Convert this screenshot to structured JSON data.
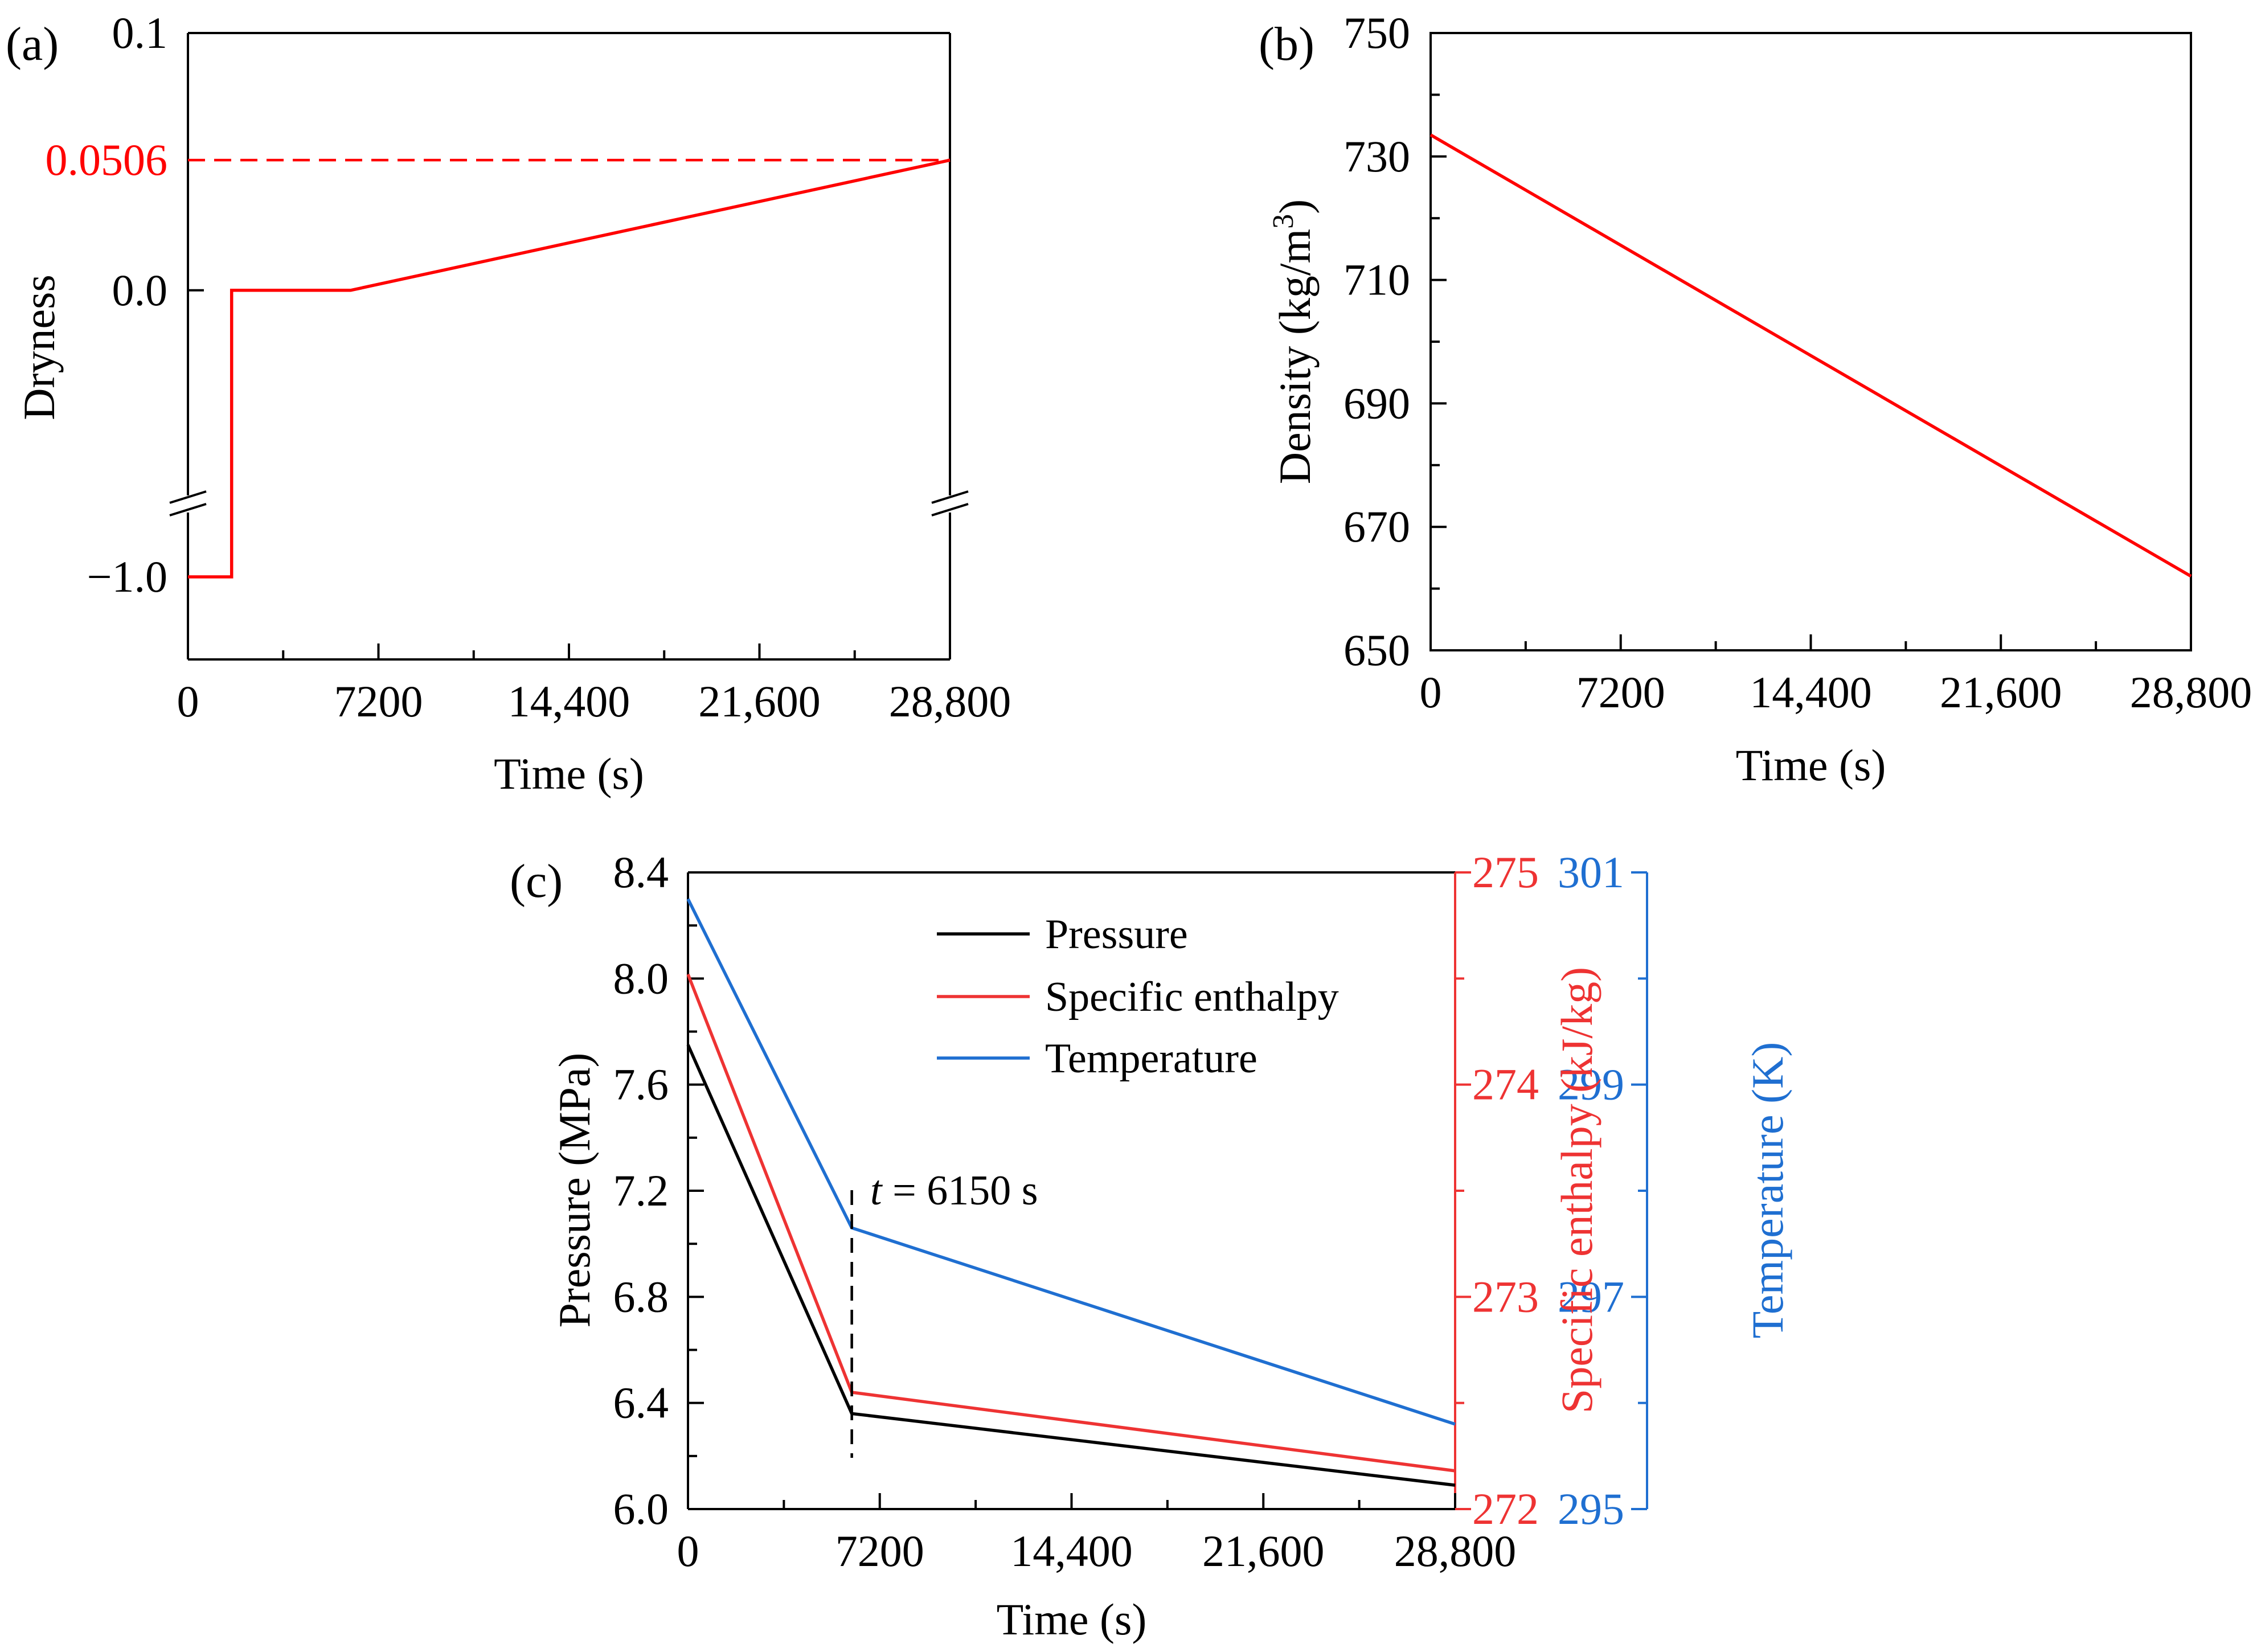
{
  "colors": {
    "axis": "#000000",
    "red": "#ff0000",
    "enthalpy_red": "#ee3333",
    "blue": "#1f6fd1",
    "black": "#000000"
  },
  "chart_data": [
    {
      "panel_label": "(a)",
      "type": "line",
      "xlabel": "Time (s)",
      "ylabel": "Dryness",
      "xlim": [
        0,
        28800
      ],
      "x_ticks": [
        0,
        7200,
        14400,
        21600,
        28800
      ],
      "x_tick_labels": [
        "0",
        "7200",
        "14,400",
        "21,600",
        "28,800"
      ],
      "y_axis_break": true,
      "y_segments": [
        {
          "range": [
            -1.4,
            -0.6
          ],
          "ticks": [
            -1.0
          ],
          "tick_labels": [
            "−1.0"
          ]
        },
        {
          "range": [
            -0.07,
            0.1
          ],
          "ticks": [
            0.0,
            0.1
          ],
          "tick_labels": [
            "0.0",
            "0.1"
          ]
        }
      ],
      "reference_line": {
        "y": 0.0506,
        "label": "0.0506",
        "style": "dashed",
        "color": "#ff0000"
      },
      "series": [
        {
          "name": "Dryness",
          "color": "#ff0000",
          "points": [
            [
              0,
              -1.0
            ],
            [
              1650,
              -1.0
            ],
            [
              1650,
              0.0
            ],
            [
              6150,
              0.0
            ],
            [
              28800,
              0.0506
            ]
          ]
        }
      ]
    },
    {
      "panel_label": "(b)",
      "type": "line",
      "xlabel": "Time (s)",
      "ylabel_parts": [
        "Density (kg/m",
        "3",
        ")"
      ],
      "xlim": [
        0,
        28800
      ],
      "ylim": [
        650,
        750
      ],
      "x_ticks": [
        0,
        7200,
        14400,
        21600,
        28800
      ],
      "x_tick_labels": [
        "0",
        "7200",
        "14,400",
        "21,600",
        "28,800"
      ],
      "y_ticks": [
        650,
        670,
        690,
        710,
        730,
        750
      ],
      "y_tick_labels": [
        "650",
        "670",
        "690",
        "710",
        "730",
        "750"
      ],
      "series": [
        {
          "name": "Density",
          "color": "#ff0000",
          "points": [
            [
              0,
              733.5
            ],
            [
              28800,
              662
            ]
          ]
        }
      ]
    },
    {
      "panel_label": "(c)",
      "type": "line",
      "xlabel": "Time (s)",
      "xlim": [
        0,
        28800
      ],
      "x_ticks": [
        0,
        7200,
        14400,
        21600,
        28800
      ],
      "x_tick_labels": [
        "0",
        "7200",
        "14,400",
        "21,600",
        "28,800"
      ],
      "axes": {
        "left": {
          "label": "Pressure (MPa)",
          "range": [
            6.0,
            8.4
          ],
          "ticks": [
            6.0,
            6.4,
            6.8,
            7.2,
            7.6,
            8.0,
            8.4
          ],
          "tick_labels": [
            "6.0",
            "6.4",
            "6.8",
            "7.2",
            "7.6",
            "8.0",
            "8.4"
          ],
          "color": "#000000"
        },
        "right1": {
          "label": "Specific enthalpy (kJ/kg)",
          "range": [
            272,
            275
          ],
          "ticks": [
            272,
            273,
            274,
            275
          ],
          "tick_labels": [
            "272",
            "273",
            "274",
            "275"
          ],
          "color": "#ee3333"
        },
        "right2": {
          "label": "Temperature (K)",
          "range": [
            295,
            301
          ],
          "ticks": [
            295,
            297,
            299,
            301
          ],
          "tick_labels": [
            "295",
            "297",
            "299",
            "301"
          ],
          "color": "#1f6fd1"
        }
      },
      "annotation": {
        "italic": "t",
        "text": " = 6150 s",
        "x": 6150
      },
      "legend": [
        "Pressure",
        "Specific enthalpy",
        "Temperature"
      ],
      "series": [
        {
          "name": "Pressure",
          "axis": "left",
          "color": "#000000",
          "points": [
            [
              0,
              7.75
            ],
            [
              6150,
              6.36
            ],
            [
              28800,
              6.09
            ]
          ]
        },
        {
          "name": "Specific enthalpy",
          "axis": "right1",
          "color": "#ee3333",
          "points": [
            [
              0,
              274.52
            ],
            [
              6150,
              272.55
            ],
            [
              28800,
              272.18
            ]
          ]
        },
        {
          "name": "Temperature",
          "axis": "right2",
          "color": "#1f6fd1",
          "points": [
            [
              0,
              300.75
            ],
            [
              6150,
              297.65
            ],
            [
              28800,
              295.8
            ]
          ]
        }
      ]
    }
  ]
}
